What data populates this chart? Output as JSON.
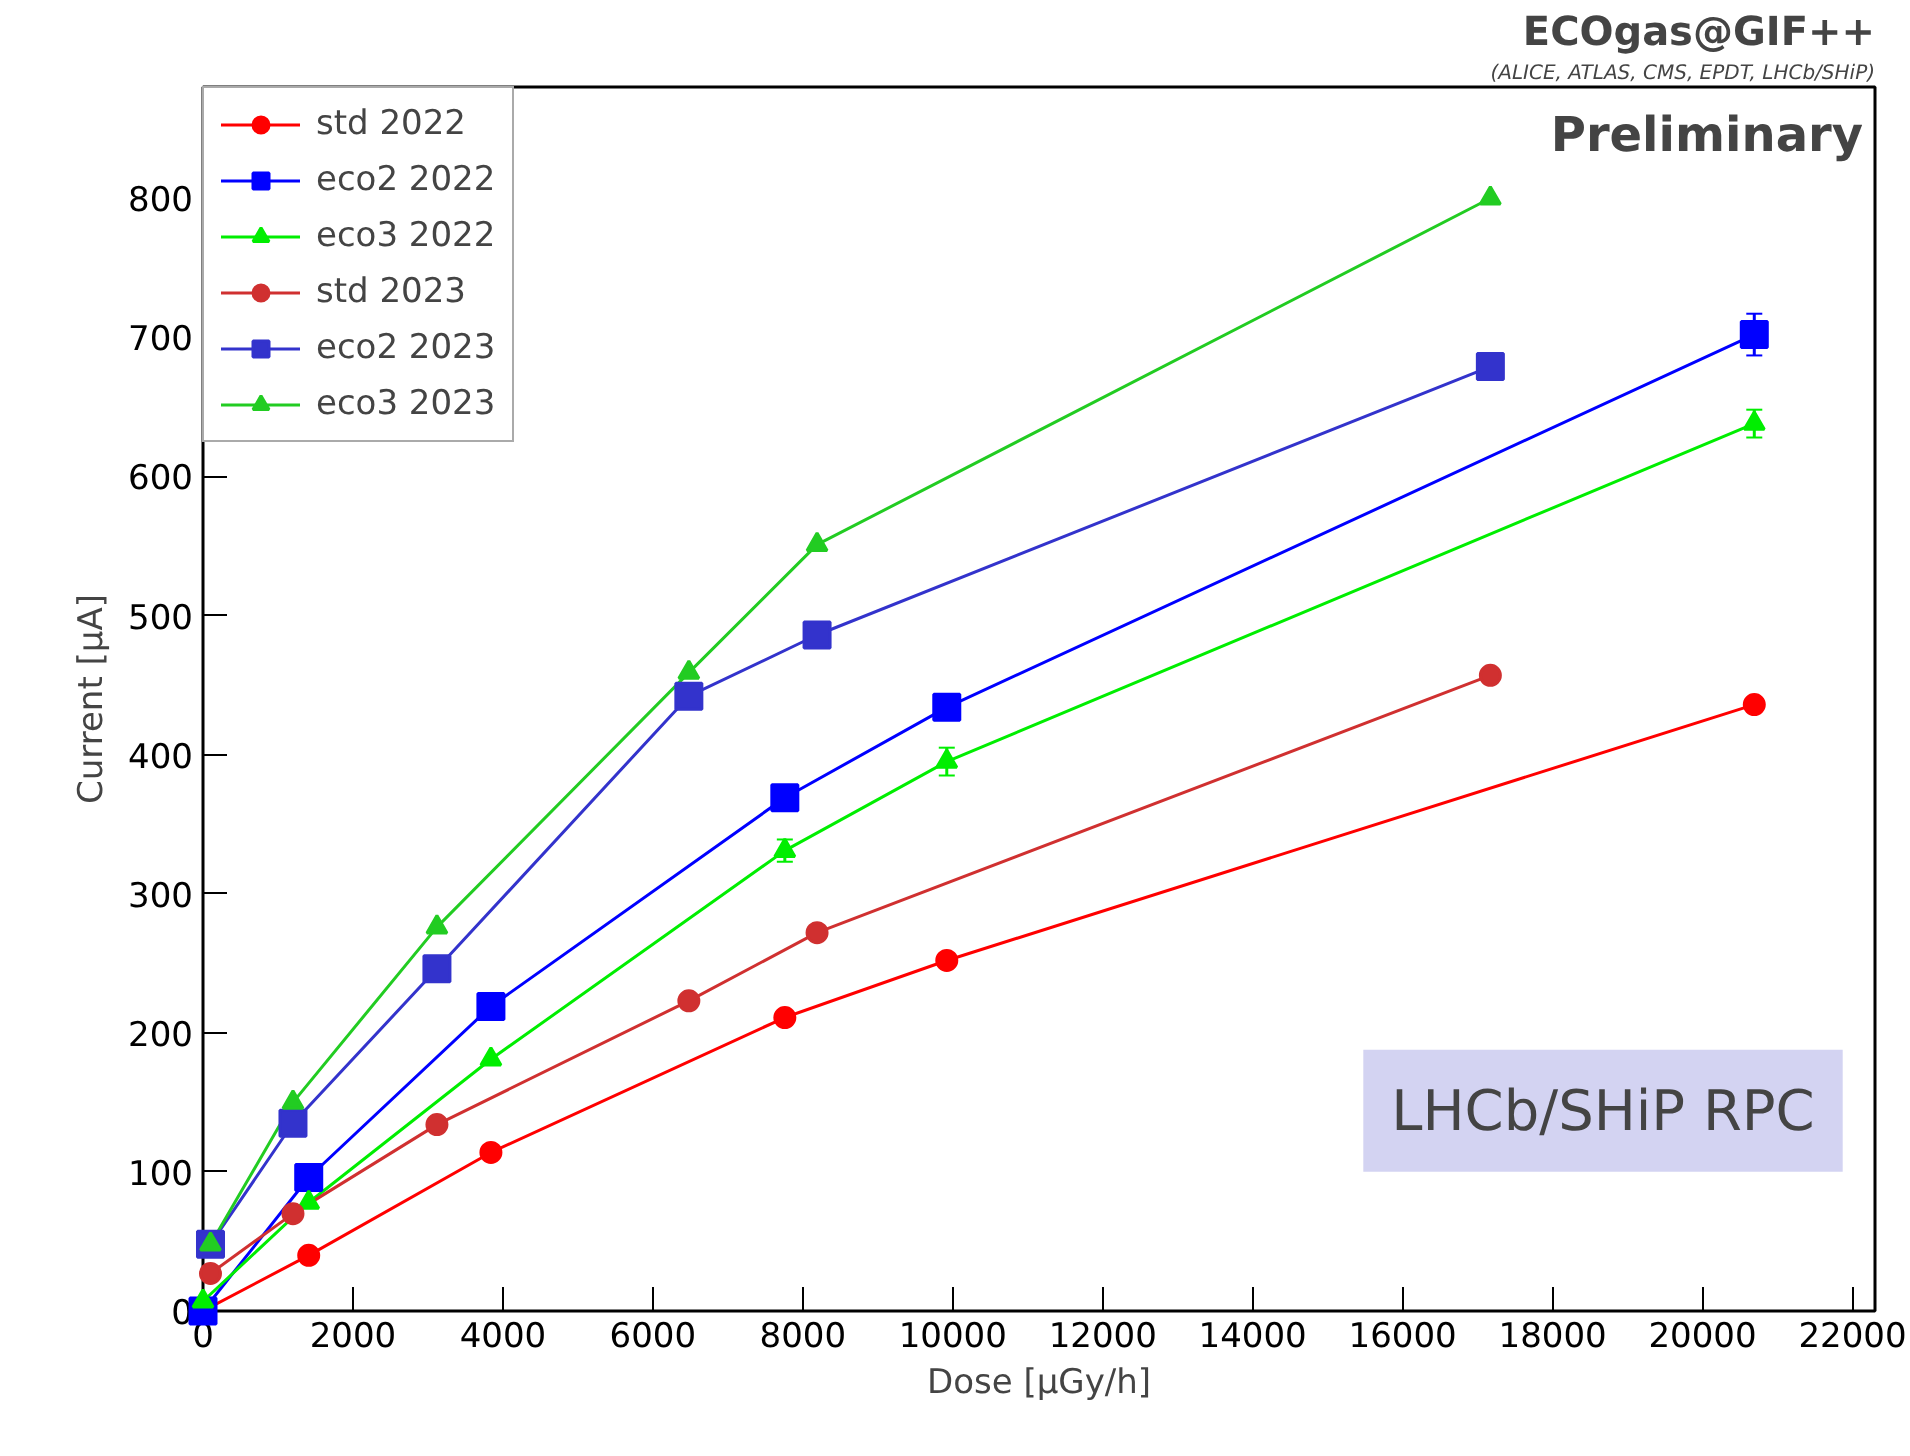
{
  "chart_data": {
    "type": "line",
    "title": "ECOgas@GIF++",
    "subtitle": "(ALICE, ATLAS, CMS, EPDT, LHCb/SHiP)",
    "xlabel": "Dose [μGy/h]",
    "ylabel": "Current [μA]",
    "annotations": [
      "Preliminary",
      "LHCb/SHiP RPC"
    ],
    "xlim": [
      0,
      22300
    ],
    "ylim": [
      0,
      880
    ],
    "xticks": [
      0,
      2000,
      4000,
      6000,
      8000,
      10000,
      12000,
      14000,
      16000,
      18000,
      20000,
      22000
    ],
    "yticks": [
      0,
      100,
      200,
      300,
      400,
      500,
      600,
      700,
      800
    ],
    "grid": false,
    "legend": "top left",
    "series": [
      {
        "name": "std 2022",
        "color": "#ff0000",
        "marker": "circle",
        "x": [
          0,
          1410,
          3840,
          7760,
          9920,
          20690
        ],
        "values": [
          0,
          40,
          114,
          211,
          252,
          436
        ]
      },
      {
        "name": "eco2 2022",
        "color": "#0000ff",
        "marker": "square",
        "x": [
          0,
          1410,
          3840,
          7760,
          9920,
          20690
        ],
        "values": [
          0,
          96,
          219,
          369,
          434,
          702
        ],
        "errors": [
          null,
          null,
          null,
          null,
          null,
          15
        ]
      },
      {
        "name": "eco3 2022",
        "color": "#00ee00",
        "marker": "triangle",
        "x": [
          0,
          1410,
          3840,
          7760,
          9920,
          20690
        ],
        "values": [
          7,
          78,
          181,
          331,
          395,
          638
        ],
        "errors": [
          null,
          null,
          null,
          8,
          10,
          10
        ]
      },
      {
        "name": "std 2023",
        "color": "#d03030",
        "marker": "circle",
        "x": [
          100,
          1200,
          3120,
          6480,
          8190,
          17170
        ],
        "values": [
          27,
          70,
          134,
          223,
          272,
          457
        ]
      },
      {
        "name": "eco2 2023",
        "color": "#3333cc",
        "marker": "square",
        "x": [
          100,
          1200,
          3120,
          6480,
          8190,
          17170
        ],
        "values": [
          48,
          135,
          246,
          442,
          486,
          679
        ]
      },
      {
        "name": "eco3 2023",
        "color": "#22cc22",
        "marker": "triangle",
        "x": [
          100,
          1200,
          3120,
          6480,
          8190,
          17170
        ],
        "values": [
          48,
          150,
          276,
          459,
          551,
          800
        ]
      }
    ]
  }
}
